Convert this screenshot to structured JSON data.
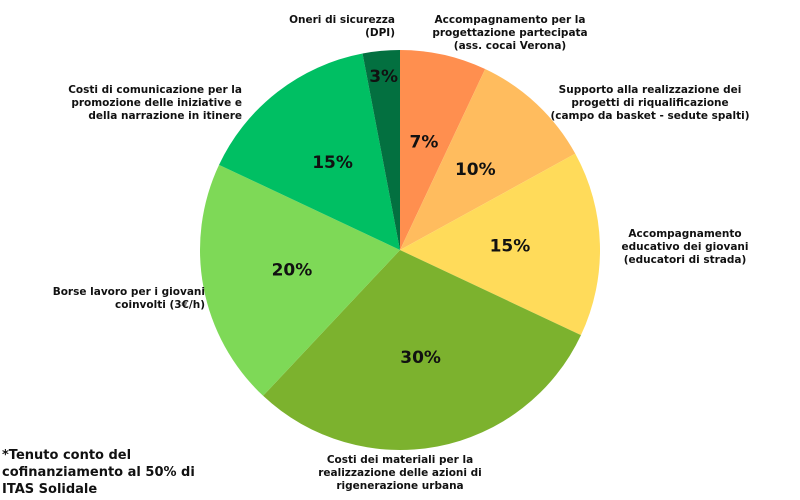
{
  "chart_data": {
    "type": "pie",
    "start": "top",
    "direction": "clockwise",
    "slices": [
      {
        "label": "Accompagnamento per la progettazione partecipata (ass. cocai Verona)",
        "value": 7,
        "value_label": "7%",
        "color": "#FF8F4F"
      },
      {
        "label": "Supporto alla realizzazione dei progetti di riqualificazione (campo da basket - sedute spalti)",
        "value": 10,
        "value_label": "10%",
        "color": "#FFBC5E"
      },
      {
        "label": "Accompagnamento educativo dei giovani (educatori di strada)",
        "value": 15,
        "value_label": "15%",
        "color": "#FFDB5A"
      },
      {
        "label": "Costi dei materiali per la realizzazione delle azioni di rigenerazione urbana",
        "value": 30,
        "value_label": "30%",
        "color": "#7CB22E"
      },
      {
        "label": "Borse lavoro per i giovani coinvolti (3€/h)",
        "value": 20,
        "value_label": "20%",
        "color": "#7ED957"
      },
      {
        "label": "Costi di comunicazione per la promozione delle iniziative e della narrazione in itinere",
        "value": 15,
        "value_label": "15%",
        "color": "#00BF63"
      },
      {
        "label": "Oneri di sicurezza (DPI)",
        "value": 3,
        "value_label": "3%",
        "color": "#037040"
      }
    ]
  },
  "note": "*Tenuto conto del cofinanziamento al 50% di ITAS Solidale"
}
